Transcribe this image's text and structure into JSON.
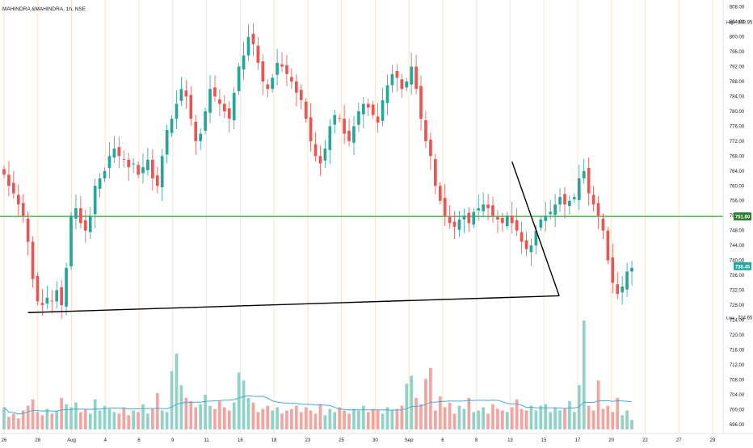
{
  "header": {
    "title": "MAHINDRA &MAHINDRA, 1h, NSE"
  },
  "chart_data": {
    "type": "candlestick",
    "symbol": "MAHINDRA &MAHINDRA",
    "interval": "1h",
    "exchange": "NSE",
    "ylim": [
      694,
      809
    ],
    "y_ticks": [
      696,
      700,
      704,
      708,
      712,
      716,
      720,
      724,
      728,
      732,
      736,
      740,
      744,
      748,
      752,
      756,
      760,
      764,
      768,
      772,
      776,
      780,
      784,
      788,
      792,
      796,
      800,
      804,
      808
    ],
    "x_ticks": [
      "26",
      "28",
      "Aug",
      "4",
      "6",
      "9",
      "11",
      "16",
      "18",
      "23",
      "25",
      "30",
      "Sep",
      "6",
      "8",
      "13",
      "15",
      "17",
      "20",
      "22",
      "27",
      "29"
    ],
    "labels": {
      "high": {
        "text": "High",
        "value": "803.95"
      },
      "low": {
        "text": "Low",
        "value": "724.65"
      },
      "horizontal_level": "751.80",
      "last_price": "738.45"
    },
    "horizontal_line": {
      "value": 751.8,
      "color": "#4caf50"
    },
    "trendlines": [
      {
        "from": {
          "bar": 5,
          "price": 726.0
        },
        "to": {
          "bar": 115,
          "price": 730.5
        },
        "color": "#000000"
      },
      {
        "from": {
          "bar": 106,
          "price": 766.5
        },
        "to": {
          "bar": 115,
          "price": 730.5
        },
        "color": "#000000"
      }
    ],
    "colors": {
      "up": "#26a69a",
      "down": "#ef5350",
      "volume_up": "#8fd3c8",
      "volume_down": "#f4a39f",
      "volume_ma": "#4aa8d6",
      "grid": "#fbe3c3"
    },
    "bars_close": [
      763,
      760,
      758,
      755,
      752,
      745,
      735,
      729,
      728,
      730,
      729,
      732,
      728,
      738,
      752,
      754,
      750,
      748,
      752,
      760,
      762,
      764,
      768,
      770,
      768,
      767,
      765,
      766,
      763,
      765,
      767,
      762,
      760,
      768,
      775,
      778,
      782,
      786,
      784,
      778,
      772,
      774,
      780,
      786,
      784,
      782,
      780,
      778,
      785,
      792,
      795,
      800,
      798,
      793,
      788,
      786,
      789,
      793,
      792,
      790,
      788,
      785,
      783,
      778,
      772,
      768,
      766,
      770,
      776,
      779,
      778,
      774,
      772,
      776,
      780,
      782,
      781,
      779,
      777,
      783,
      787,
      790,
      789,
      786,
      788,
      792,
      786,
      778,
      772,
      768,
      760,
      756,
      752,
      750,
      749,
      751,
      752,
      750,
      753,
      754,
      755,
      754,
      752,
      751,
      750,
      752,
      750,
      748,
      745,
      743,
      744,
      748,
      751,
      752,
      753,
      755,
      757,
      755,
      756,
      757,
      762,
      764,
      758,
      755,
      752,
      748,
      740,
      734,
      731,
      733,
      737,
      738
    ]
  },
  "volume": [
    28,
    16,
    20,
    14,
    24,
    30,
    38,
    22,
    18,
    26,
    20,
    24,
    40,
    32,
    28,
    34,
    22,
    26,
    20,
    38,
    24,
    30,
    26,
    22,
    20,
    28,
    18,
    24,
    22,
    32,
    20,
    26,
    46,
    24,
    22,
    74,
    96,
    56,
    40,
    36,
    28,
    32,
    44,
    30,
    26,
    36,
    28,
    24,
    34,
    72,
    62,
    40,
    34,
    22,
    26,
    30,
    24,
    28,
    20,
    24,
    26,
    30,
    22,
    28,
    24,
    20,
    32,
    18,
    26,
    22,
    28,
    24,
    20,
    26,
    24,
    30,
    22,
    26,
    24,
    20,
    28,
    24,
    26,
    30,
    58,
    68,
    40,
    32,
    64,
    78,
    24,
    42,
    28,
    34,
    20,
    30,
    26,
    40,
    22,
    24,
    28,
    20,
    32,
    26,
    24,
    22,
    28,
    38,
    26,
    24,
    30,
    24,
    30,
    32,
    22,
    28,
    24,
    26,
    36,
    22,
    56,
    138,
    30,
    24,
    62,
    26,
    30,
    22,
    40,
    18,
    24,
    12
  ]
}
